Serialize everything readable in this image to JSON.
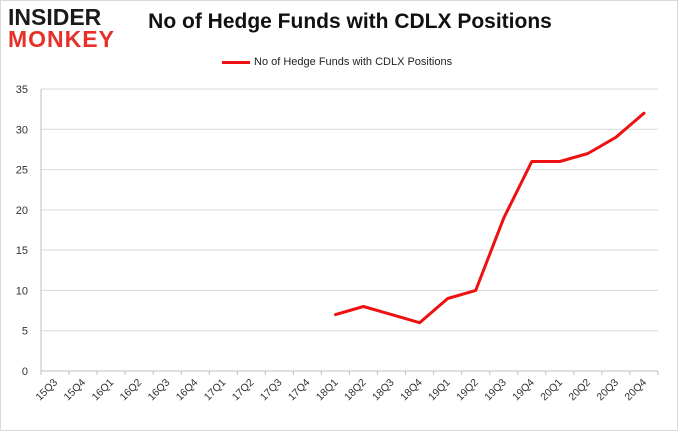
{
  "logo": {
    "line1": "INSIDER",
    "line2": "MONKEY"
  },
  "chart_data": {
    "type": "line",
    "title": "No of Hedge Funds with CDLX Positions",
    "xlabel": "",
    "ylabel": "",
    "categories": [
      "15Q3",
      "15Q4",
      "16Q1",
      "16Q2",
      "16Q3",
      "16Q4",
      "17Q1",
      "17Q2",
      "17Q3",
      "17Q4",
      "18Q1",
      "18Q2",
      "18Q3",
      "18Q4",
      "19Q1",
      "19Q2",
      "19Q3",
      "19Q4",
      "20Q1",
      "20Q2",
      "20Q3",
      "20Q4"
    ],
    "series": [
      {
        "name": "No of Hedge Funds with CDLX Positions",
        "color": "#ee1111",
        "values": [
          null,
          null,
          null,
          null,
          null,
          null,
          null,
          null,
          null,
          null,
          7,
          8,
          7,
          6,
          9,
          10,
          19,
          26,
          26,
          27,
          29,
          32
        ]
      }
    ],
    "ylim": [
      0,
      35
    ],
    "yticks": [
      0,
      5,
      10,
      15,
      20,
      25,
      30,
      35
    ],
    "grid": true,
    "legend": "top-center"
  }
}
